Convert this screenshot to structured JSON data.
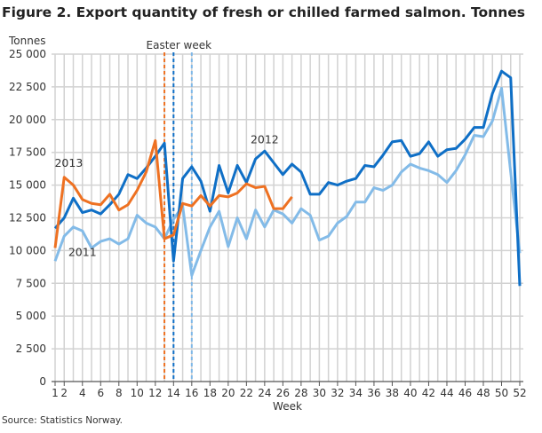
{
  "chart_data": {
    "type": "line",
    "title": "Figure 2. Export quantity of fresh or chilled farmed salmon. Tonnes",
    "ylabel": "Tonnes",
    "xlabel": "Week",
    "source": "Source: Statistics Norway.",
    "ylim": [
      0,
      25000
    ],
    "xlim": [
      1,
      52
    ],
    "yticks": [
      0,
      2500,
      5000,
      7500,
      10000,
      12500,
      15000,
      17500,
      20000,
      22500,
      25000
    ],
    "ytick_labels": [
      "0",
      "2 500",
      "5 000",
      "7 500",
      "10 000",
      "12 500",
      "15 000",
      "17 500",
      "20 000",
      "22 500",
      "25 000"
    ],
    "xticks": [
      1,
      2,
      4,
      6,
      8,
      10,
      12,
      14,
      16,
      18,
      20,
      22,
      24,
      26,
      28,
      30,
      32,
      34,
      36,
      38,
      40,
      42,
      44,
      46,
      48,
      50,
      52
    ],
    "grid": true,
    "annotation": "Easter week",
    "easter_weeks": [
      {
        "week": 13,
        "color": "#ee7122"
      },
      {
        "week": 14,
        "color": "#0f6fc6"
      },
      {
        "week": 16,
        "color": "#7fb8e8"
      }
    ],
    "series": [
      {
        "name": "2011",
        "color": "#83bbe8",
        "label_week": 4,
        "label_value": 9600,
        "values": [
          9200,
          11100,
          11800,
          11500,
          10200,
          10700,
          10900,
          10500,
          10900,
          12700,
          12100,
          11800,
          10900,
          12400,
          13400,
          8100,
          10000,
          11800,
          13000,
          10300,
          12500,
          10900,
          13100,
          11800,
          13100,
          12800,
          12100,
          13200,
          12700,
          10800,
          11100,
          12100,
          12600,
          13700,
          13700,
          14800,
          14600,
          15000,
          16000,
          16600,
          16300,
          16100,
          15800,
          15200,
          16100,
          17300,
          18800,
          18700,
          19900,
          22400,
          16000,
          9800
        ]
      },
      {
        "name": "2012",
        "color": "#0f6fc6",
        "label_week": 24,
        "label_value": 18200,
        "values": [
          11700,
          12500,
          14000,
          12900,
          13100,
          12800,
          13500,
          14300,
          15800,
          15500,
          16300,
          17200,
          18200,
          9200,
          15500,
          16400,
          15300,
          13000,
          16500,
          14400,
          16500,
          15200,
          17000,
          17600,
          16700,
          15800,
          16600,
          16000,
          14300,
          14300,
          15200,
          15000,
          15300,
          15500,
          16500,
          16400,
          17300,
          18300,
          18400,
          17200,
          17400,
          18300,
          17200,
          17700,
          17800,
          18500,
          19400,
          19400,
          22000,
          23700,
          23200,
          7300
        ]
      },
      {
        "name": "2013",
        "color": "#ee7122",
        "label_week": 2.5,
        "label_value": 16400,
        "values": [
          10200,
          15600,
          15000,
          13900,
          13600,
          13500,
          14300,
          13100,
          13500,
          14600,
          16000,
          18400,
          10900,
          11200,
          13600,
          13400,
          14200,
          13400,
          14200,
          14100,
          14400,
          15100,
          14800,
          14900,
          13200,
          13200,
          14100
        ]
      }
    ]
  }
}
